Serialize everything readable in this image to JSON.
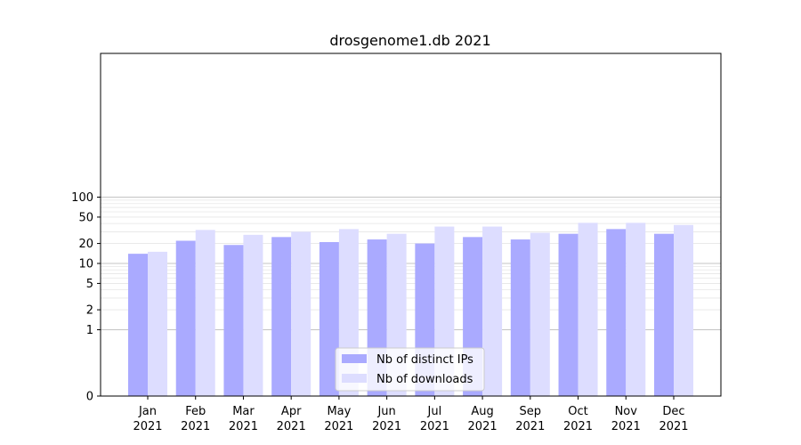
{
  "chart_data": {
    "type": "bar",
    "title": "drosgenome1.db 2021",
    "xlabel": "",
    "ylabel": "",
    "yscale": "symlog",
    "ylim": [
      0,
      120
    ],
    "yticks": [
      0,
      1,
      2,
      5,
      10,
      20,
      50,
      100
    ],
    "ytick_labels": [
      "0",
      "1",
      "2",
      "5",
      "10",
      "20",
      "50",
      "100"
    ],
    "grid": true,
    "legend_position": "bottom-center",
    "categories": [
      [
        "Jan",
        "2021"
      ],
      [
        "Feb",
        "2021"
      ],
      [
        "Mar",
        "2021"
      ],
      [
        "Apr",
        "2021"
      ],
      [
        "May",
        "2021"
      ],
      [
        "Jun",
        "2021"
      ],
      [
        "Jul",
        "2021"
      ],
      [
        "Aug",
        "2021"
      ],
      [
        "Sep",
        "2021"
      ],
      [
        "Oct",
        "2021"
      ],
      [
        "Nov",
        "2021"
      ],
      [
        "Dec",
        "2021"
      ]
    ],
    "series": [
      {
        "name": "Nb of distinct IPs",
        "color": "#aaaaff",
        "values": [
          14,
          22,
          19,
          25,
          21,
          23,
          20,
          25,
          23,
          28,
          33,
          28
        ]
      },
      {
        "name": "Nb of downloads",
        "color": "#ddddff",
        "values": [
          15,
          32,
          27,
          30,
          33,
          28,
          36,
          36,
          29,
          41,
          41,
          38
        ]
      }
    ]
  }
}
